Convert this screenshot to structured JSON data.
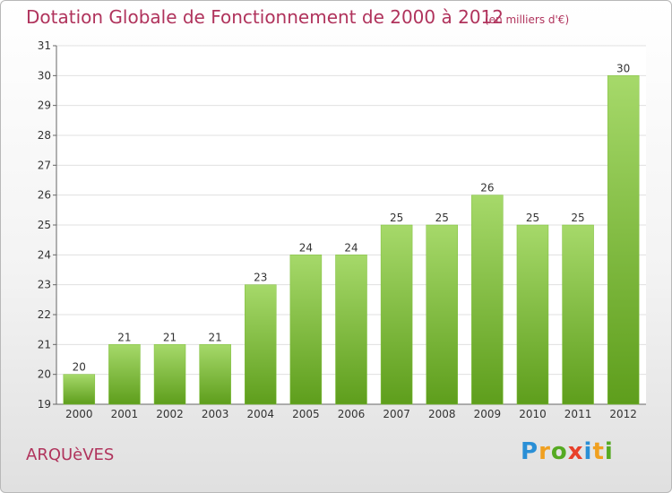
{
  "header": {
    "title": "Dotation Globale de Fonctionnement de 2000 à 2012",
    "subtitle": "(en milliers d'€)"
  },
  "footer": {
    "commune": "ARQUèVES",
    "brand": {
      "letters": [
        "P",
        "r",
        "o",
        "x",
        "i",
        "t",
        "i"
      ],
      "colors": [
        "#2a8fd6",
        "#f0a020",
        "#55aa22",
        "#e8402a",
        "#2a8fd6",
        "#f0a020",
        "#55aa22"
      ]
    }
  },
  "colors": {
    "bar_top": "#a6d96a",
    "bar_bottom": "#5e9e1c",
    "title": "#b0335c",
    "grid": "#e0e0e0"
  },
  "chart_data": {
    "type": "bar",
    "title": "Dotation Globale de Fonctionnement de 2000 à 2012",
    "subtitle": "(en milliers d'€)",
    "xlabel": "",
    "ylabel": "",
    "categories": [
      "2000",
      "2001",
      "2002",
      "2003",
      "2004",
      "2005",
      "2006",
      "2007",
      "2008",
      "2009",
      "2010",
      "2011",
      "2012"
    ],
    "values": [
      20,
      21,
      21,
      21,
      23,
      24,
      24,
      25,
      25,
      26,
      25,
      25,
      30
    ],
    "ylim": [
      19,
      31
    ],
    "yticks": [
      19,
      20,
      21,
      22,
      23,
      24,
      25,
      26,
      27,
      28,
      29,
      30,
      31
    ],
    "grid": true,
    "data_labels": true
  }
}
